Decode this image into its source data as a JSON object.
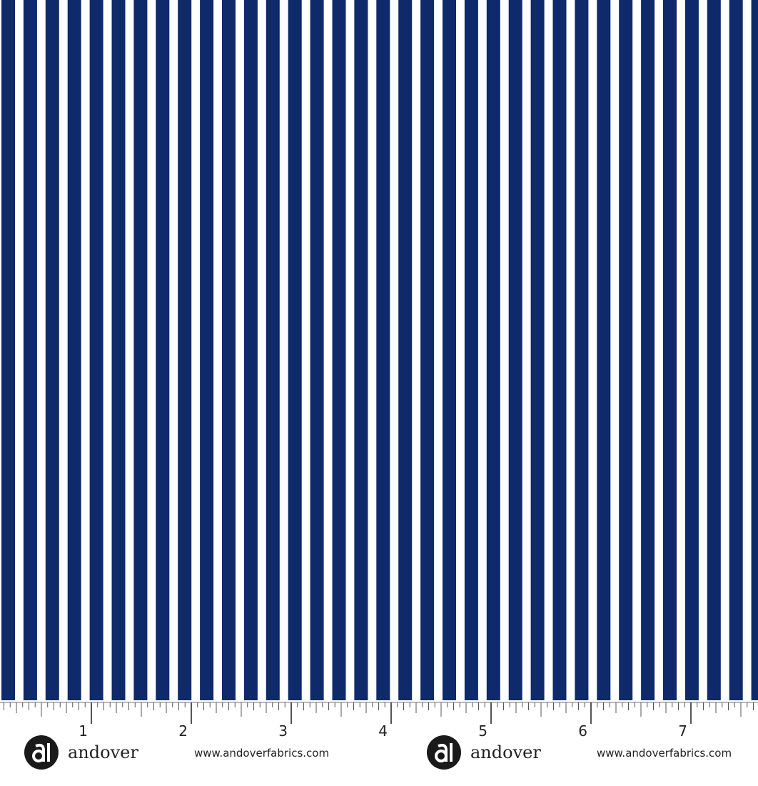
{
  "ruler": {
    "labels": [
      "1",
      "2",
      "3",
      "4",
      "5",
      "6",
      "7"
    ]
  },
  "footer": {
    "brands": [
      {
        "name": "andover",
        "url": "www.andoverfabrics.com"
      },
      {
        "name": "andover",
        "url": "www.andoverfabrics.com"
      }
    ]
  }
}
